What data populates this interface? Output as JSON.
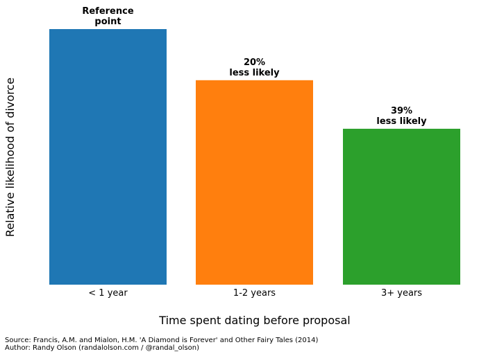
{
  "chart_data": {
    "type": "bar",
    "categories": [
      "< 1 year",
      "1-2 years",
      "3+ years"
    ],
    "values": [
      1.0,
      0.8,
      0.61
    ],
    "colors": [
      "#1f77b4",
      "#ff7f0e",
      "#2ca02c"
    ],
    "annotations": [
      [
        "Reference",
        "point"
      ],
      [
        "20%",
        "less likely"
      ],
      [
        "39%",
        "less likely"
      ]
    ],
    "xlabel": "Time spent dating before proposal",
    "ylabel": "Relative likelihood of divorce",
    "ylim": [
      0,
      1.0
    ],
    "grid": false
  },
  "footer": {
    "source": "Source: Francis, A.M. and Mialon, H.M. 'A Diamond is Forever' and Other Fairy Tales (2014)",
    "author": "Author: Randy Olson (randalolson.com / @randal_olson)"
  }
}
